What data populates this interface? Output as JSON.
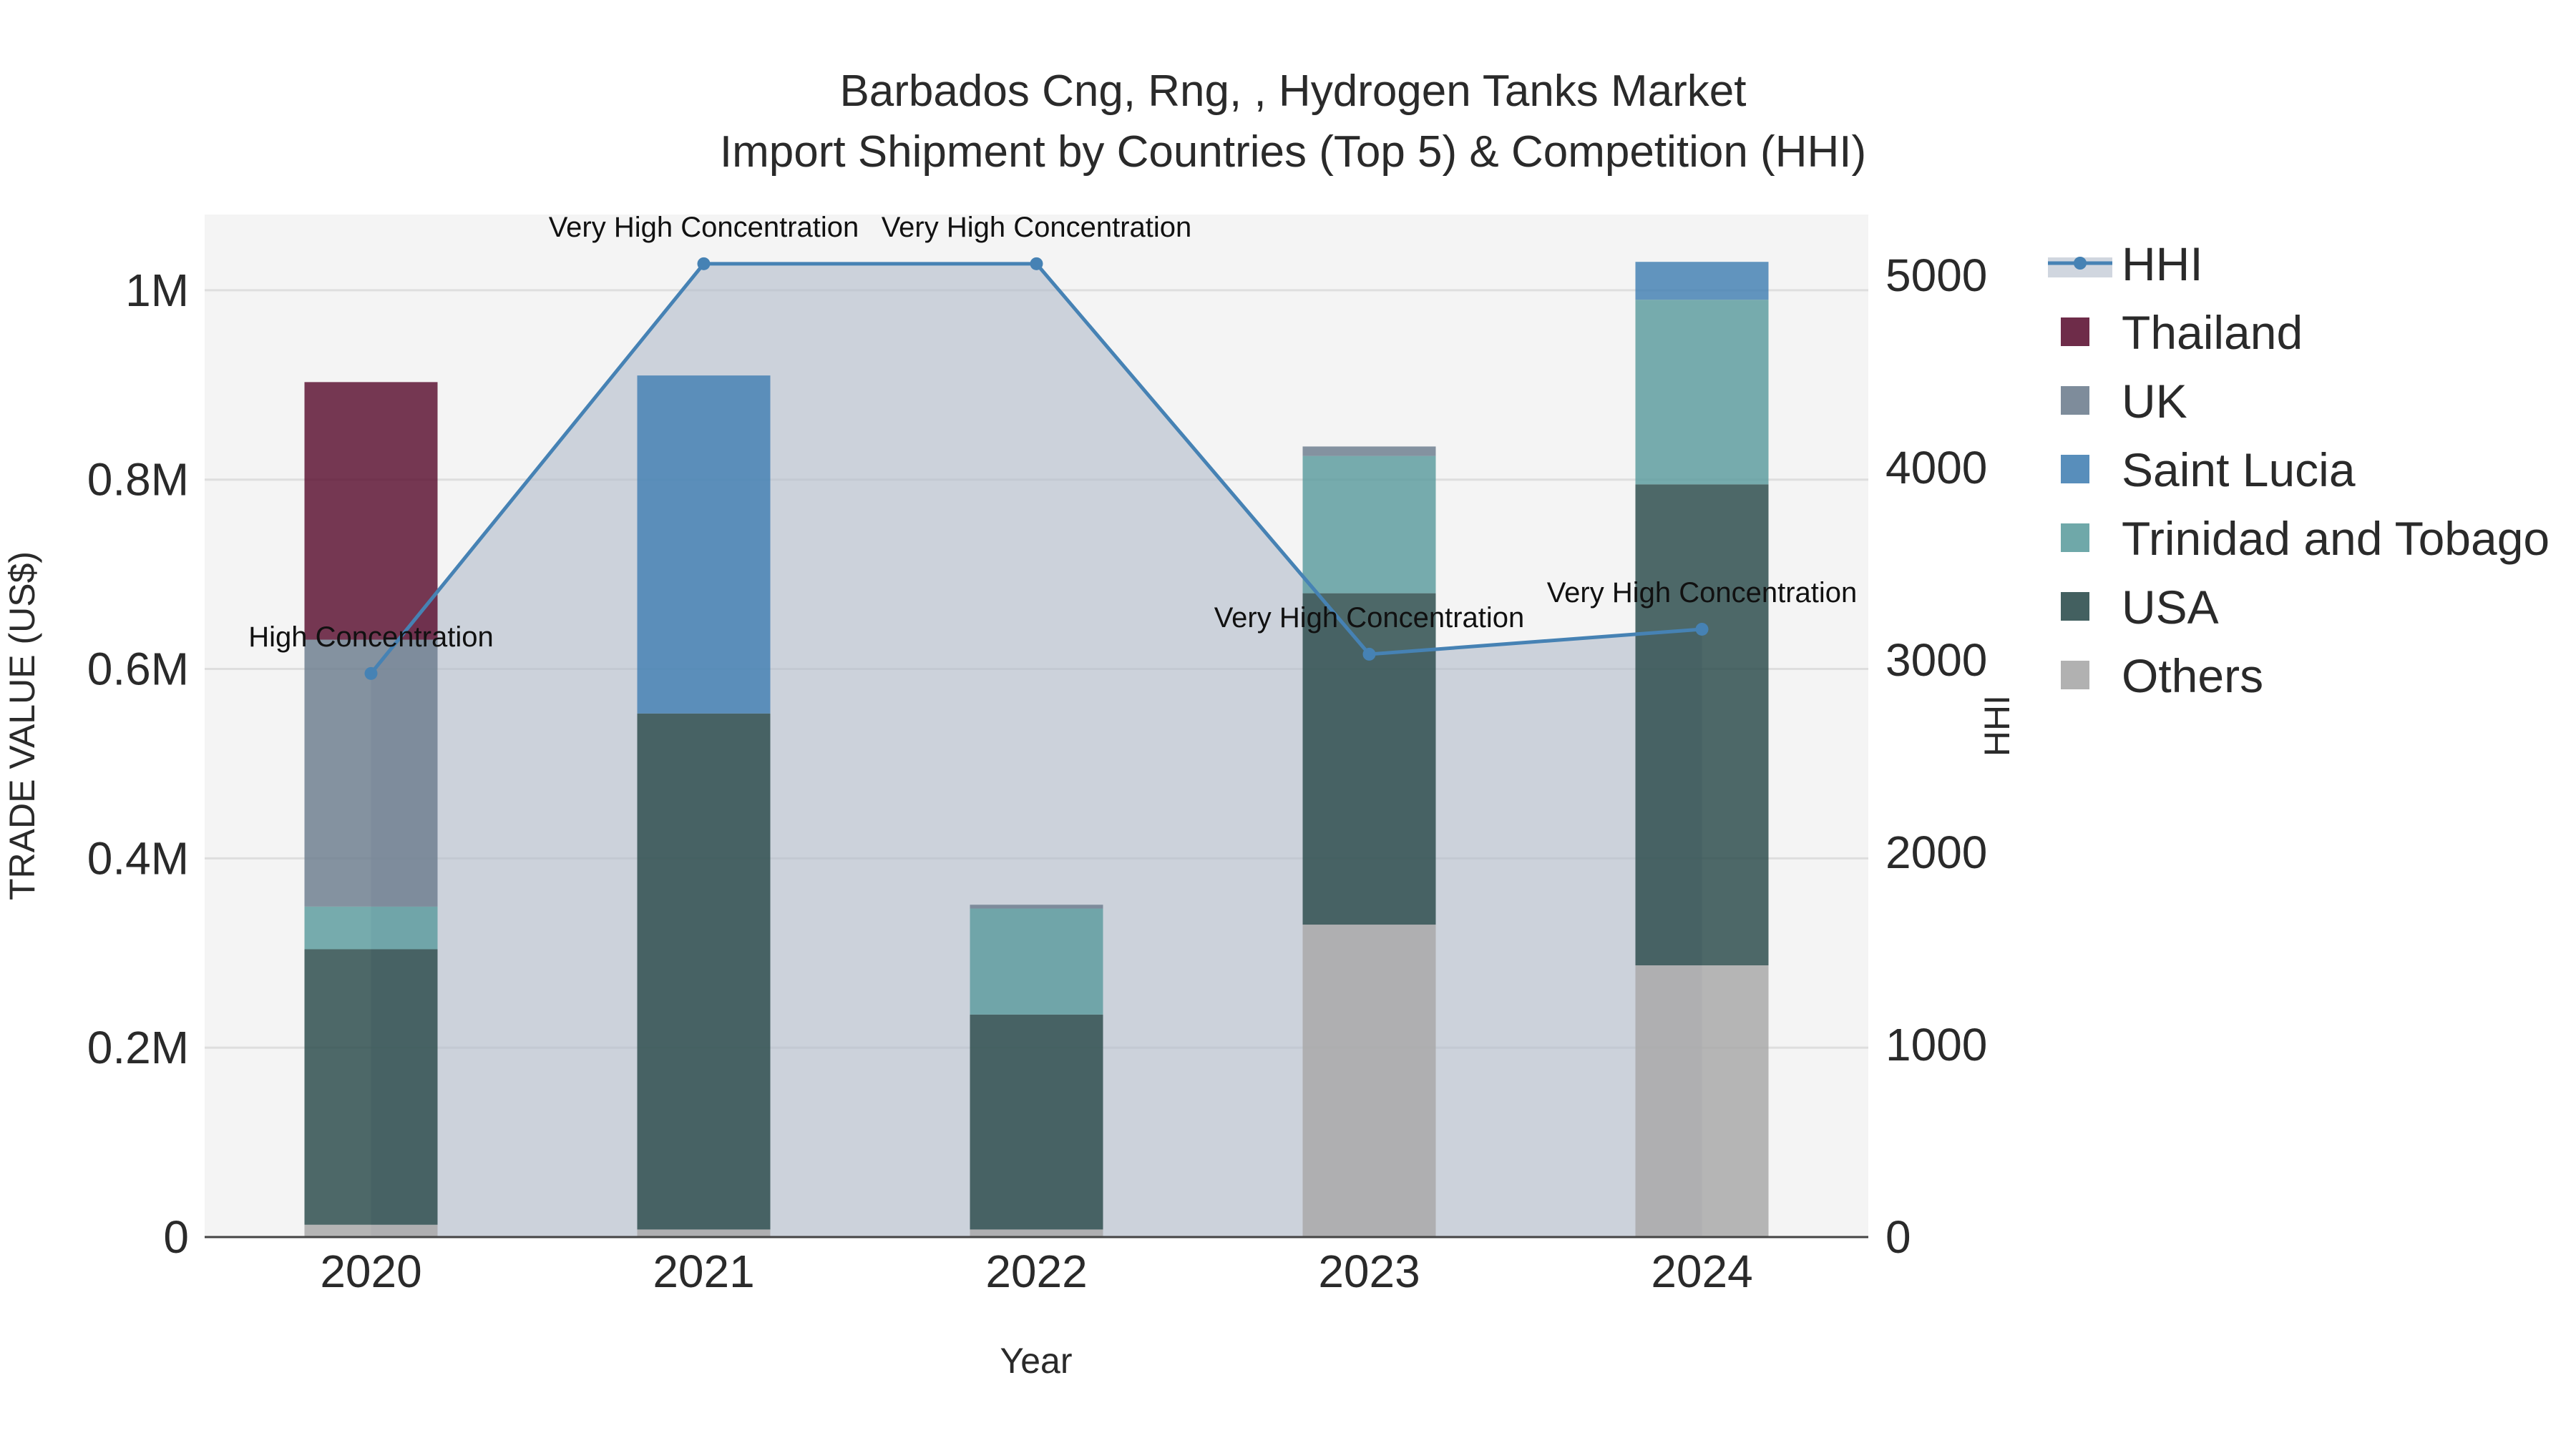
{
  "chart_data": {
    "type": "bar",
    "title": "Barbados Cng, Rng, , Hydrogen Tanks Market",
    "subtitle": "Import Shipment by Countries (Top 5) & Competition (HHI)",
    "xlabel": "Year",
    "ylabel": "TRADE VALUE (US$)",
    "y2label": "HHI",
    "categories": [
      "2020",
      "2021",
      "2022",
      "2023",
      "2024"
    ],
    "ylim": [
      0,
      1080000
    ],
    "y2lim": [
      0,
      5316
    ],
    "yticks": [
      {
        "value": 0,
        "label": "0"
      },
      {
        "value": 200000,
        "label": "0.2M"
      },
      {
        "value": 400000,
        "label": "0.4M"
      },
      {
        "value": 600000,
        "label": "0.6M"
      },
      {
        "value": 800000,
        "label": "0.8M"
      },
      {
        "value": 1000000,
        "label": "1M"
      }
    ],
    "y2ticks": [
      {
        "value": 0,
        "label": "0"
      },
      {
        "value": 1000,
        "label": "1000"
      },
      {
        "value": 2000,
        "label": "2000"
      },
      {
        "value": 3000,
        "label": "3000"
      },
      {
        "value": 4000,
        "label": "4000"
      },
      {
        "value": 5000,
        "label": "5000"
      }
    ],
    "stack_order_bottom_to_top": [
      "Others",
      "USA",
      "Trinidad and Tobago",
      "Saint Lucia",
      "UK",
      "Thailand"
    ],
    "series": [
      {
        "name": "Thailand",
        "color": "#5e1535",
        "values": [
          272000,
          0,
          0,
          0,
          0
        ]
      },
      {
        "name": "UK",
        "color": "#708090",
        "values": [
          282000,
          0,
          4000,
          10000,
          0
        ]
      },
      {
        "name": "Saint Lucia",
        "color": "#4682b4",
        "values": [
          0,
          357000,
          0,
          0,
          40000
        ]
      },
      {
        "name": "Trinidad and Tobago",
        "color": "#5f9ea0",
        "values": [
          45000,
          0,
          112000,
          145000,
          195000
        ]
      },
      {
        "name": "USA",
        "color": "#2f4f4f",
        "values": [
          291000,
          545000,
          227000,
          350000,
          508000
        ]
      },
      {
        "name": "Others",
        "color": "#a9a9a9",
        "values": [
          13000,
          8000,
          8000,
          330000,
          287000
        ]
      }
    ],
    "hhi": {
      "name": "HHI",
      "color": "#4682b4",
      "values": [
        2930,
        5060,
        5060,
        3030,
        3160
      ],
      "labels": [
        "High Concentration",
        "Very High Concentration",
        "Very High Concentration",
        "Very High Concentration",
        "Very High Concentration"
      ]
    },
    "legend": [
      "HHI",
      "Thailand",
      "UK",
      "Saint Lucia",
      "Trinidad and Tobago",
      "USA",
      "Others"
    ],
    "legend_position": "right",
    "grid": true
  }
}
